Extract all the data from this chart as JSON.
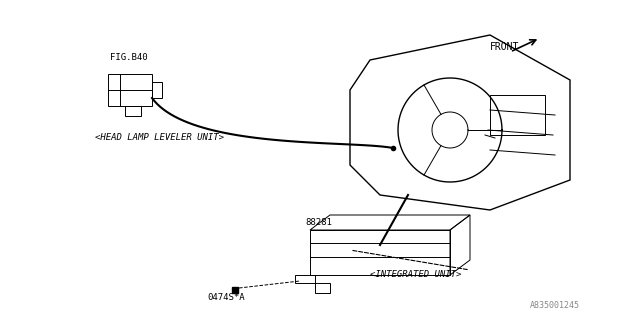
{
  "bg_color": "#ffffff",
  "line_color": "#000000",
  "part_color": "#111111",
  "fig_ref": "FIG.B40",
  "part_number": "88281",
  "bolt_number": "0474S*A",
  "label_head_lamp": "<HEAD LAMP LEVELER UNIT>",
  "label_integrated": "<INTEGRATED UNIT>",
  "front_label": "FRONT",
  "diagram_ref": "A835001245",
  "title_fontsize": 7,
  "label_fontsize": 7,
  "ref_fontsize": 6
}
